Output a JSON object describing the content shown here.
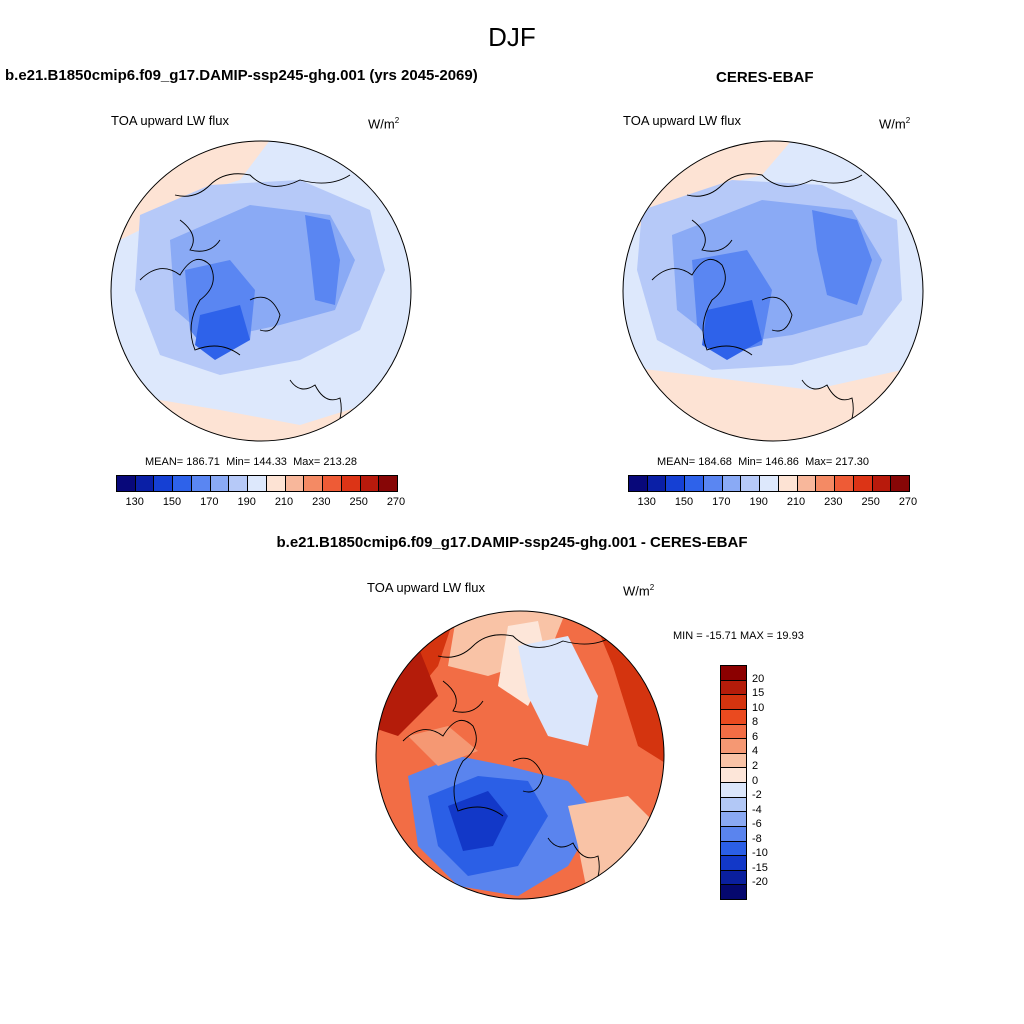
{
  "title": "DJF",
  "panels": {
    "model": {
      "case": "b.e21.B1850cmip6.f09_g17.DAMIP-ssp245-ghg.001 (yrs 2045-2069)",
      "variable": "TOA upward LW flux",
      "units_base": "W/m",
      "units_exp": "2",
      "mean_label": "MEAN=",
      "mean": "186.71",
      "min_label": "Min=",
      "min": "144.33",
      "max_label": "Max=",
      "max": "213.28"
    },
    "obs": {
      "case": "CERES-EBAF",
      "variable": "TOA upward LW flux",
      "units_base": "W/m",
      "units_exp": "2",
      "mean_label": "MEAN=",
      "mean": "184.68",
      "min_label": "Min=",
      "min": "146.86",
      "max_label": "Max=",
      "max": "217.30"
    },
    "diff": {
      "case": "b.e21.B1850cmip6.f09_g17.DAMIP-ssp245-ghg.001 - CERES-EBAF",
      "variable": "TOA upward LW flux",
      "units_base": "W/m",
      "units_exp": "2",
      "minmax": "MIN = -15.71 MAX =  19.93"
    }
  },
  "colorbars": {
    "mean": {
      "colors": [
        "#08087a",
        "#0a1fa6",
        "#1540d4",
        "#2e62ea",
        "#5a86f2",
        "#8aaaf5",
        "#b6c9f8",
        "#dde8fc",
        "#fde3d4",
        "#f8b79b",
        "#f48a64",
        "#ee5b36",
        "#dc3416",
        "#b81a0c",
        "#870606"
      ],
      "labels": [
        "130",
        "150",
        "170",
        "190",
        "210",
        "230",
        "250",
        "270"
      ]
    },
    "diff": {
      "colors": [
        "#8b0000",
        "#b41c0a",
        "#d4340f",
        "#ea4a1f",
        "#f26d45",
        "#f59873",
        "#f9c3a6",
        "#fde6d9",
        "#dbe6fb",
        "#b2c8f6",
        "#8aa9f3",
        "#5a84ee",
        "#2b5fe6",
        "#1238c8",
        "#0a1f9e",
        "#05086e"
      ],
      "labels": [
        "20",
        "15",
        "10",
        "8",
        "6",
        "4",
        "2",
        "0",
        "-2",
        "-4",
        "-6",
        "-8",
        "-10",
        "-15",
        "-20"
      ]
    }
  }
}
